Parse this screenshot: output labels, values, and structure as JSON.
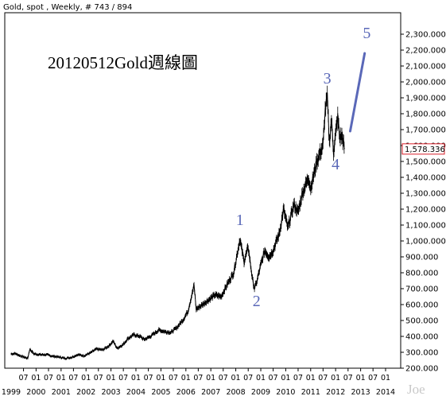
{
  "header": "Gold, spot , Weekly, # 743 / 894",
  "title": "20120512Gold週線圖",
  "watermark": "Joe",
  "chart_data": {
    "type": "line",
    "ylim": [
      200,
      2400
    ],
    "y_ticks": [
      200,
      300,
      400,
      500,
      600,
      700,
      800,
      900,
      1000,
      1100,
      1200,
      1300,
      1400,
      1500,
      1600,
      1700,
      1800,
      1900,
      2000,
      2100,
      2200,
      2300
    ],
    "y_tick_labels": [
      "200.000",
      "300.000",
      "400.000",
      "500.000",
      "600.000",
      "700.000",
      "800.000",
      "900.000",
      "1,000.000",
      "1,100.000",
      "1,200.000",
      "1,300.000",
      "1,400.000",
      "1,500.000",
      "1,600.000",
      "1,700.000",
      "1,800.000",
      "1,900.000",
      "2,000.000",
      "2,100.000",
      "2,200.000",
      "2,300.000"
    ],
    "xlim": [
      "1999-01-01",
      "2014-06-30"
    ],
    "year_labels": [
      "1999",
      "2000",
      "2001",
      "2002",
      "2003",
      "2004",
      "2005",
      "2006",
      "2007",
      "2008",
      "2009",
      "2010",
      "2011",
      "2012",
      "2013",
      "2014"
    ],
    "month_labels": [
      "07",
      "01",
      "07",
      "01",
      "07",
      "01",
      "07",
      "01",
      "07",
      "01",
      "07",
      "01",
      "07",
      "01",
      "07",
      "01",
      "07",
      "01",
      "07",
      "01",
      "07",
      "01",
      "07",
      "01",
      "07",
      "01",
      "07",
      "01",
      "07",
      "01",
      "07",
      "01"
    ],
    "last_value": 1578.336,
    "last_label": "1,578.336",
    "series": [
      {
        "values_approx": [
          [
            "1999-01-01",
            290
          ],
          [
            "1999-03-01",
            292
          ],
          [
            "1999-06-01",
            275
          ],
          [
            "1999-09-01",
            262
          ],
          [
            "1999-10-01",
            320
          ],
          [
            "1999-12-01",
            290
          ],
          [
            "2000-03-01",
            285
          ],
          [
            "2000-06-01",
            285
          ],
          [
            "2000-09-01",
            275
          ],
          [
            "2000-12-01",
            270
          ],
          [
            "2001-03-01",
            262
          ],
          [
            "2001-06-01",
            268
          ],
          [
            "2001-09-01",
            285
          ],
          [
            "2001-12-01",
            278
          ],
          [
            "2002-03-01",
            295
          ],
          [
            "2002-06-01",
            320
          ],
          [
            "2002-09-01",
            315
          ],
          [
            "2002-12-01",
            340
          ],
          [
            "2003-02-01",
            370
          ],
          [
            "2003-04-01",
            325
          ],
          [
            "2003-07-01",
            350
          ],
          [
            "2003-09-01",
            385
          ],
          [
            "2003-12-01",
            410
          ],
          [
            "2004-03-01",
            400
          ],
          [
            "2004-05-01",
            380
          ],
          [
            "2004-08-01",
            400
          ],
          [
            "2004-12-01",
            440
          ],
          [
            "2005-03-01",
            430
          ],
          [
            "2005-06-01",
            425
          ],
          [
            "2005-09-01",
            460
          ],
          [
            "2005-12-01",
            510
          ],
          [
            "2006-02-01",
            560
          ],
          [
            "2006-05-01",
            720
          ],
          [
            "2006-06-01",
            570
          ],
          [
            "2006-09-01",
            600
          ],
          [
            "2006-12-01",
            630
          ],
          [
            "2007-03-01",
            660
          ],
          [
            "2007-06-01",
            650
          ],
          [
            "2007-09-01",
            730
          ],
          [
            "2007-12-01",
            800
          ],
          [
            "2008-03-01",
            1010
          ],
          [
            "2008-05-01",
            870
          ],
          [
            "2008-07-01",
            960
          ],
          [
            "2008-09-01",
            760
          ],
          [
            "2008-10-01",
            700
          ],
          [
            "2008-11-01",
            740
          ],
          [
            "2009-01-01",
            850
          ],
          [
            "2009-03-01",
            940
          ],
          [
            "2009-05-01",
            900
          ],
          [
            "2009-07-01",
            940
          ],
          [
            "2009-10-01",
            1050
          ],
          [
            "2009-12-01",
            1200
          ],
          [
            "2010-02-01",
            1080
          ],
          [
            "2010-05-01",
            1230
          ],
          [
            "2010-07-01",
            1180
          ],
          [
            "2010-09-01",
            1300
          ],
          [
            "2010-12-01",
            1400
          ],
          [
            "2011-01-01",
            1330
          ],
          [
            "2011-04-01",
            1500
          ],
          [
            "2011-07-01",
            1600
          ],
          [
            "2011-08-01",
            1820
          ],
          [
            "2011-09-01",
            1900
          ],
          [
            "2011-10-01",
            1620
          ],
          [
            "2011-11-01",
            1760
          ],
          [
            "2011-12-01",
            1560
          ],
          [
            "2012-02-01",
            1780
          ],
          [
            "2012-03-01",
            1650
          ],
          [
            "2012-04-01",
            1660
          ],
          [
            "2012-05-12",
            1578
          ]
        ]
      }
    ],
    "annotations": [
      {
        "text": "1",
        "x": "2008-03-01",
        "y": 1100
      },
      {
        "text": "2",
        "x": "2008-11-01",
        "y": 590
      },
      {
        "text": "3",
        "x": "2011-09-01",
        "y": 1990
      },
      {
        "text": "4",
        "x": "2012-01-01",
        "y": 1450
      },
      {
        "text": "5",
        "x": "2013-04-01",
        "y": 2275
      }
    ],
    "projection": [
      [
        "2012-08-01",
        1690
      ],
      [
        "2013-03-01",
        2180
      ]
    ],
    "colors": {
      "price": "#000000",
      "annotation": "#5a68b8",
      "last_box": "#d9202a"
    }
  }
}
